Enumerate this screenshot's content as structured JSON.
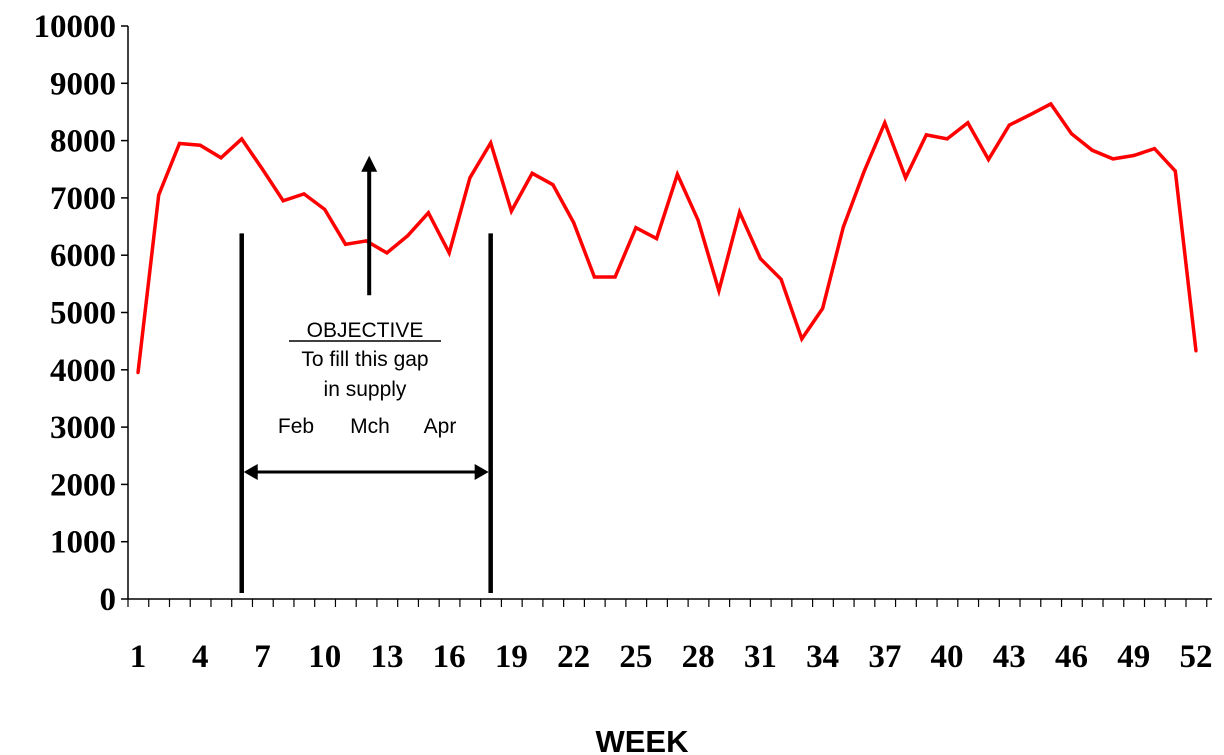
{
  "chart_data": {
    "type": "line",
    "title": "",
    "xlabel": "WEEK",
    "ylabel": "",
    "ylim": [
      0,
      10000
    ],
    "xlim": [
      1,
      52
    ],
    "grid": false,
    "legend": "none",
    "y_ticks": [
      "0",
      "1000",
      "2000",
      "3000",
      "4000",
      "5000",
      "6000",
      "7000",
      "8000",
      "9000",
      "10000"
    ],
    "x_ticks": [
      "1",
      "4",
      "7",
      "10",
      "13",
      "16",
      "19",
      "22",
      "25",
      "28",
      "31",
      "34",
      "37",
      "40",
      "43",
      "46",
      "49",
      "52"
    ],
    "series": [
      {
        "color": "#ff0000",
        "x": [
          1,
          2,
          3,
          4,
          5,
          6,
          7,
          8,
          9,
          10,
          11,
          12,
          13,
          14,
          15,
          16,
          17,
          18,
          19,
          20,
          21,
          22,
          23,
          24,
          25,
          26,
          27,
          28,
          29,
          30,
          31,
          32,
          33,
          34,
          35,
          36,
          37,
          38,
          39,
          40,
          41,
          42,
          43,
          44,
          45,
          46,
          47,
          48,
          49,
          50,
          51,
          52
        ],
        "values": [
          3950,
          7050,
          7950,
          7920,
          7700,
          8030,
          7500,
          6950,
          7070,
          6800,
          6190,
          6250,
          6040,
          6340,
          6740,
          6040,
          7350,
          7960,
          6770,
          7430,
          7230,
          6570,
          5620,
          5620,
          6480,
          6290,
          7410,
          6610,
          5380,
          6750,
          5940,
          5580,
          4540,
          5070,
          6490,
          7460,
          8310,
          7350,
          8100,
          8030,
          8310,
          7670,
          8270,
          8450,
          8640,
          8120,
          7830,
          7680,
          7740,
          7860,
          7470,
          4330
        ]
      }
    ],
    "annotations": {
      "objective_title": "OBJECTIVE",
      "objective_line1": "To fill this gap",
      "objective_line2": "in supply",
      "months": [
        "Feb",
        "Mch",
        "Apr"
      ],
      "gap_start_week": 6,
      "gap_end_week": 18,
      "gap_top_value": 6380,
      "arrow_week": 12,
      "arrow_base_value": 5300,
      "arrow_tip_value": 7700
    }
  }
}
